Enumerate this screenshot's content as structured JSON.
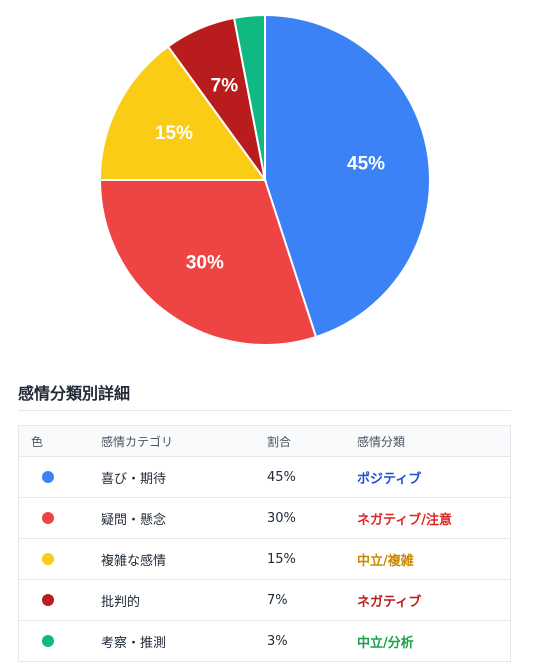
{
  "chart_data": {
    "type": "pie",
    "categories": [
      "喜び・期待",
      "疑問・懸念",
      "複雑な感情",
      "批判的",
      "考察・推測"
    ],
    "values": [
      45,
      30,
      15,
      7,
      3
    ],
    "colors": [
      "#3b82f6",
      "#ef4444",
      "#facc15",
      "#b91c1c",
      "#10b981"
    ],
    "data_labels": [
      "45%",
      "30%",
      "15%",
      "7%",
      ""
    ],
    "start": "top",
    "direction": "clockwise"
  },
  "details": {
    "title": "感情分類別詳細",
    "headers": {
      "color": "色",
      "category": "感情カテゴリ",
      "ratio": "割合",
      "classification": "感情分類"
    },
    "rows": [
      {
        "dot_color": "#3b82f6",
        "category": "喜び・期待",
        "ratio": "45%",
        "classification": "ポジティブ",
        "class_color": "#1d4ed8"
      },
      {
        "dot_color": "#ef4444",
        "category": "疑問・懸念",
        "ratio": "30%",
        "classification": "ネガティブ/注意",
        "class_color": "#dc2626"
      },
      {
        "dot_color": "#facc15",
        "category": "複雑な感情",
        "ratio": "15%",
        "classification": "中立/複雑",
        "class_color": "#ca8a04"
      },
      {
        "dot_color": "#b91c1c",
        "category": "批判的",
        "ratio": "7%",
        "classification": "ネガティブ",
        "class_color": "#b91c1c"
      },
      {
        "dot_color": "#10b981",
        "category": "考察・推測",
        "ratio": "3%",
        "classification": "中立/分析",
        "class_color": "#16a34a"
      }
    ]
  }
}
